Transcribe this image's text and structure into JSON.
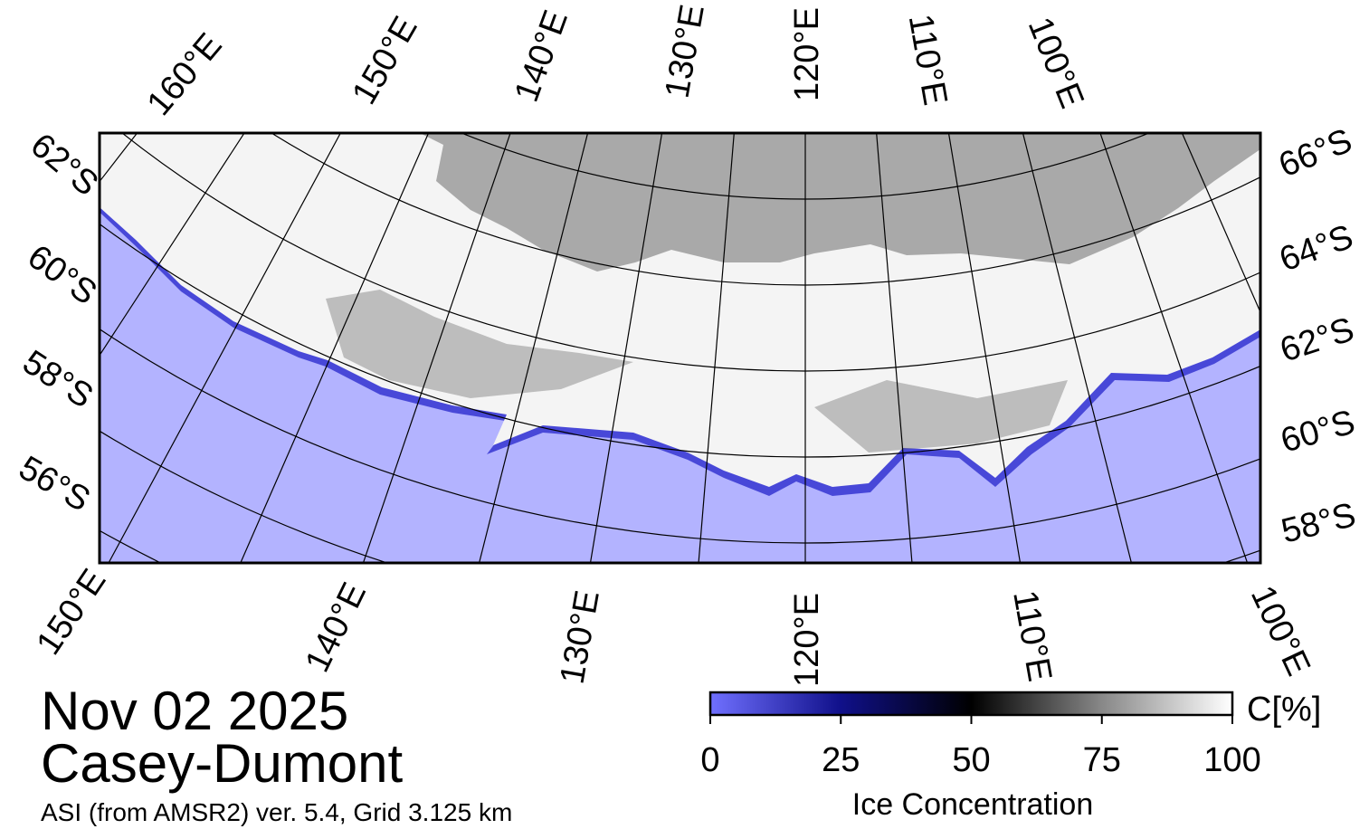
{
  "map": {
    "top_labels": [
      "160°E",
      "150°E",
      "140°E",
      "130°E",
      "120°E",
      "110°E",
      "100°E"
    ],
    "right_labels": [
      "66°S",
      "64°S",
      "62°S",
      "60°S",
      "58°S"
    ],
    "left_labels": [
      "62°S",
      "60°S",
      "58°S",
      "56°S"
    ],
    "bottom_labels": [
      "150°E",
      "140°E",
      "130°E",
      "120°E",
      "110°E",
      "100°E"
    ]
  },
  "caption": {
    "date": "Nov 02 2025",
    "region": "Casey-Dumont",
    "source": "ASI (from AMSR2) ver. 5.4,  Grid 3.125 km"
  },
  "colorbar": {
    "label": "Ice Concentration",
    "unit": "C[%]",
    "lim": [
      0,
      100
    ],
    "ticks": [
      0,
      25,
      50,
      75,
      100
    ]
  }
}
